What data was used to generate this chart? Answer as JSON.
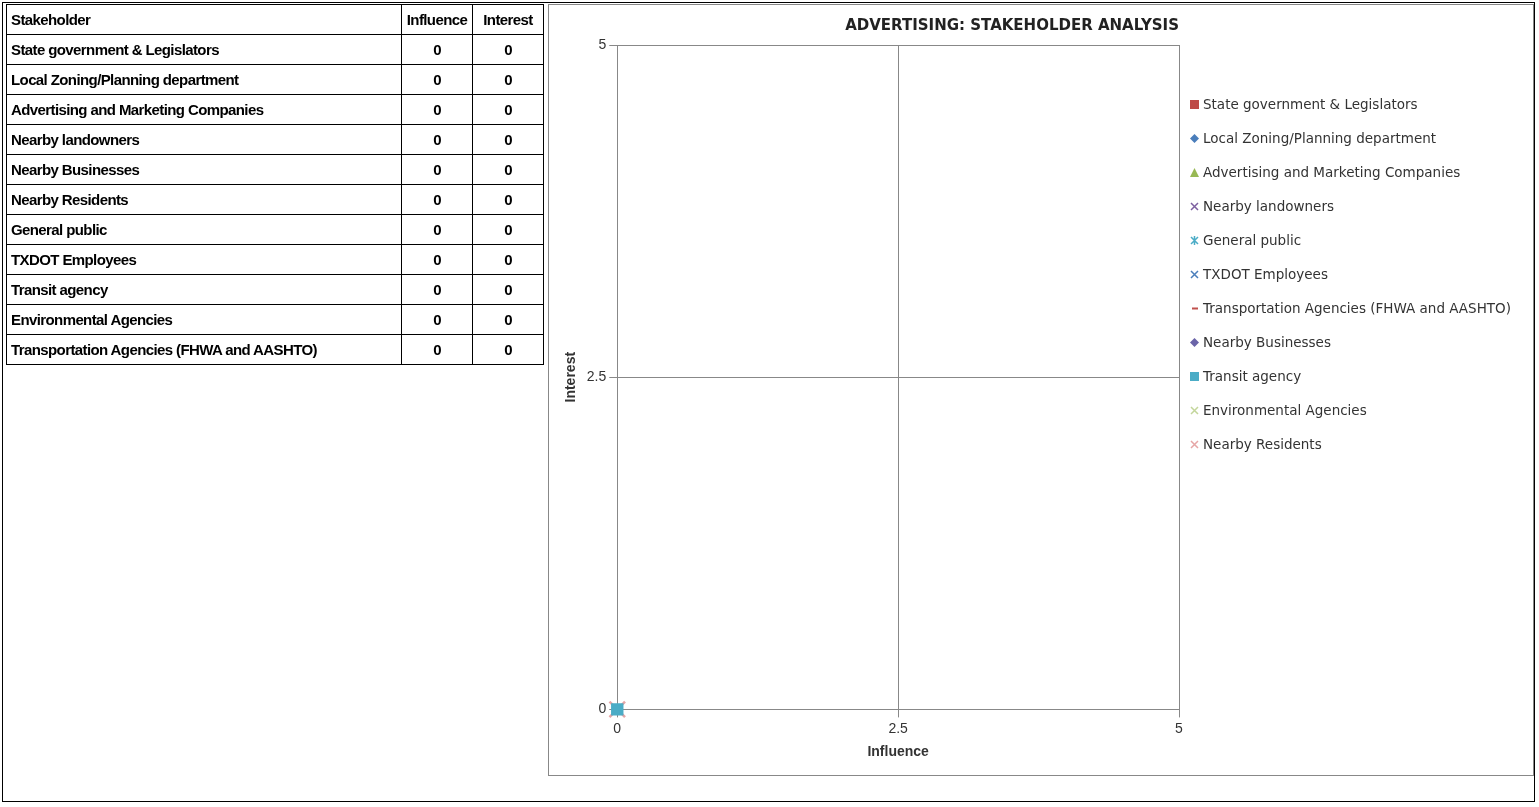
{
  "chart_data": [
    {
      "type": "heatmap",
      "annotations": [
        "Stakeholder"
      ],
      "categories": [
        "Influence",
        "Interest"
      ],
      "y_categories": [
        "State government & Legislators",
        "Local Zoning/Planning department",
        "Advertising and Marketing Companies",
        "Nearby landowners",
        "Nearby Businesses",
        "Nearby Residents",
        "General public",
        "TXDOT Employees",
        "Transit agency",
        "Environmental Agencies",
        "Transportation Agencies (FHWA and AASHTO)"
      ],
      "cells": [
        [
          0,
          0
        ],
        [
          0,
          0
        ],
        [
          0,
          0
        ],
        [
          0,
          0
        ],
        [
          0,
          0
        ],
        [
          0,
          0
        ],
        [
          0,
          0
        ],
        [
          0,
          0
        ],
        [
          0,
          0
        ],
        [
          0,
          0
        ],
        [
          0,
          0
        ]
      ],
      "data_labels": true
    },
    {
      "type": "scatter",
      "title": "ADVERTISING: STAKEHOLDER ANALYSIS",
      "xlabel": "Influence",
      "ylabel": "Interest",
      "xlim": [
        0,
        5
      ],
      "xticks": [
        0,
        2.5,
        5
      ],
      "ylim": [
        0,
        5
      ],
      "yticks": [
        0,
        2.5,
        5
      ],
      "grid": true,
      "legend": "right",
      "series": [
        {
          "name": "State government & Legislators",
          "color": "#be4b48",
          "marker": "square",
          "x": [
            null
          ],
          "values": [
            null
          ]
        },
        {
          "name": "Local Zoning/Planning department",
          "color": "#4a7ebb",
          "marker": "diamond",
          "x": [
            null
          ],
          "values": [
            null
          ]
        },
        {
          "name": "Advertising and Marketing Companies",
          "color": "#98b954",
          "marker": "triangle",
          "x": [
            null
          ],
          "values": [
            null
          ]
        },
        {
          "name": "Nearby landowners",
          "color": "#7d60a0",
          "marker": "cross",
          "x": [
            null
          ],
          "values": [
            null
          ]
        },
        {
          "name": "General public",
          "color": "#4bacc6",
          "marker": "star",
          "x": [
            null
          ],
          "values": [
            null
          ]
        },
        {
          "name": "TXDOT Employees",
          "color": "#4a7ebb",
          "marker": "cross",
          "x": [
            null
          ],
          "values": [
            null
          ]
        },
        {
          "name": "Transportation Agencies (FHWA and AASHTO)",
          "color": "#c0504d",
          "marker": "none",
          "x": [
            null
          ],
          "values": [
            null
          ]
        },
        {
          "name": "Nearby Businesses",
          "color": "#6a64a8",
          "marker": "diamond",
          "x": [
            null
          ],
          "values": [
            null
          ]
        },
        {
          "name": "Transit agency",
          "color": "#4bacc6",
          "marker": "square",
          "x": [
            0
          ],
          "values": [
            0
          ]
        },
        {
          "name": "Environmental Agencies",
          "color": "#c3d69b",
          "marker": "cross",
          "x": [
            null
          ],
          "values": [
            null
          ]
        },
        {
          "name": "Nearby Residents",
          "color": "#e6a6a6",
          "marker": "cross",
          "x": [
            0
          ],
          "values": [
            0
          ]
        }
      ]
    }
  ]
}
